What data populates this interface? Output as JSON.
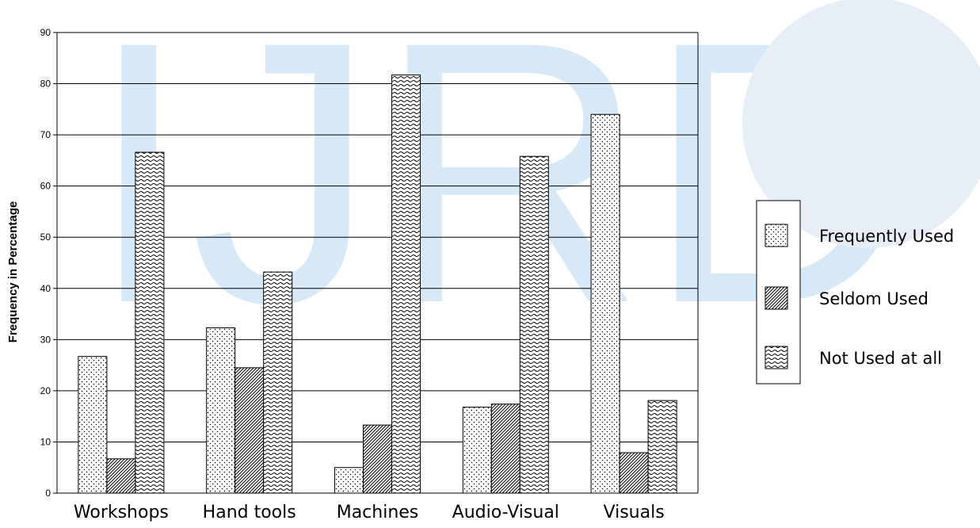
{
  "chart_data": {
    "type": "bar",
    "categories": [
      "Workshops",
      "Hand tools",
      "Machines",
      "Audio-Visual",
      "Visuals"
    ],
    "series": [
      {
        "name": "Frequently Used",
        "pattern": "dots",
        "values": [
          26.7,
          32.3,
          5.0,
          16.8,
          74.0
        ]
      },
      {
        "name": "Seldom Used",
        "pattern": "diagonal",
        "values": [
          6.7,
          24.5,
          13.3,
          17.4,
          7.9
        ]
      },
      {
        "name": "Not Used at all",
        "pattern": "waves",
        "values": [
          66.6,
          43.2,
          81.7,
          65.8,
          18.1
        ]
      }
    ],
    "title": "",
    "xlabel": "",
    "ylabel": "Frequency in Percentage",
    "ylim": [
      0,
      90
    ],
    "yticks": [
      "0",
      "10",
      "20",
      "30",
      "40",
      "50",
      "60",
      "70",
      "80",
      "90"
    ],
    "grid": true,
    "legend_position": "right"
  },
  "watermark": {
    "text": "IJRD",
    "color": "#d7e8f6",
    "globe_color": "#e8eef6"
  }
}
